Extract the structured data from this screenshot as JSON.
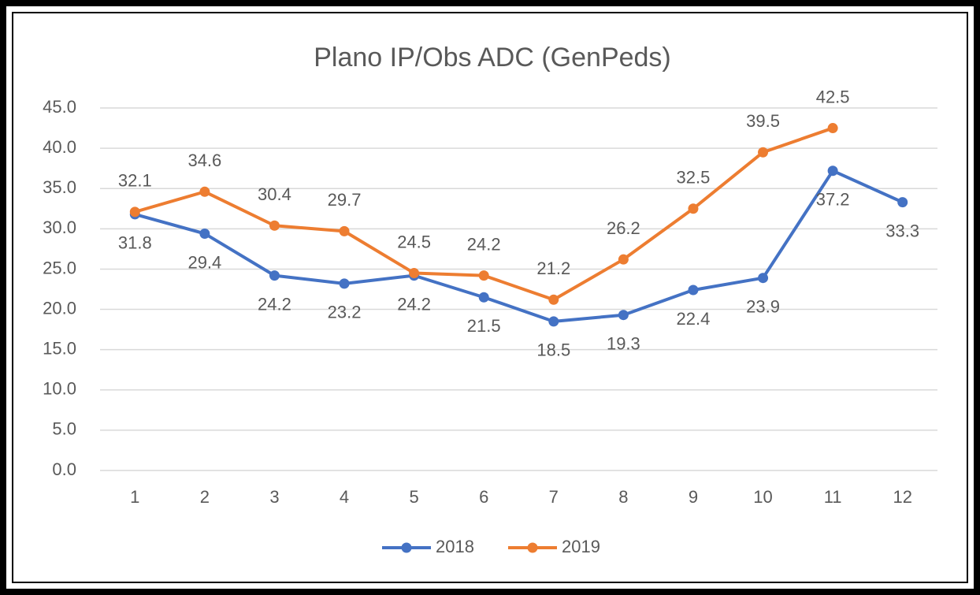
{
  "chart_data": {
    "type": "line",
    "title": "Plano IP/Obs ADC (GenPeds)",
    "categories": [
      "1",
      "2",
      "3",
      "4",
      "5",
      "6",
      "7",
      "8",
      "9",
      "10",
      "11",
      "12"
    ],
    "series": [
      {
        "name": "2018",
        "color": "#4472c4",
        "values": [
          31.8,
          29.4,
          24.2,
          23.2,
          24.2,
          21.5,
          18.5,
          19.3,
          22.4,
          23.9,
          37.2,
          33.3
        ]
      },
      {
        "name": "2019",
        "color": "#ed7d31",
        "values": [
          32.1,
          34.6,
          30.4,
          29.7,
          24.5,
          24.2,
          21.2,
          26.2,
          32.5,
          39.5,
          42.5,
          null
        ]
      }
    ],
    "ylim": [
      0,
      45
    ],
    "yticks": [
      {
        "value": 0,
        "label": "0.0"
      },
      {
        "value": 5,
        "label": "5.0"
      },
      {
        "value": 10,
        "label": "10.0"
      },
      {
        "value": 15,
        "label": "15.0"
      },
      {
        "value": 20,
        "label": "20.0"
      },
      {
        "value": 25,
        "label": "25.0"
      },
      {
        "value": 30,
        "label": "30.0"
      },
      {
        "value": 35,
        "label": "35.0"
      },
      {
        "value": 40,
        "label": "40.0"
      },
      {
        "value": 45,
        "label": "45.0"
      }
    ],
    "grid": true,
    "legend": "bottom"
  }
}
